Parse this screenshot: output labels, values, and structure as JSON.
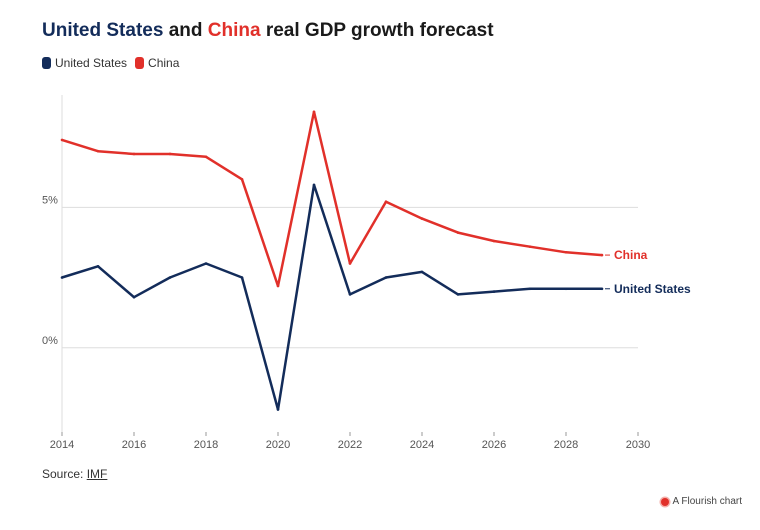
{
  "title": {
    "part1": "United States",
    "part2": " and ",
    "part3": "China",
    "part4": " real GDP growth forecast"
  },
  "colors": {
    "us": "#132c5a",
    "china": "#e1302a",
    "grid": "#dddddd",
    "axis": "#555555"
  },
  "source": {
    "label": "Source: ",
    "link": "IMF"
  },
  "flourish": {
    "label": "A Flourish chart"
  },
  "chart_data": {
    "type": "line",
    "title": "United States and China real GDP growth forecast",
    "xlabel": "",
    "ylabel": "",
    "xlim": [
      2014,
      2030
    ],
    "ylim": [
      -3,
      9
    ],
    "x_ticks": [
      "2014",
      "2016",
      "2018",
      "2020",
      "2022",
      "2024",
      "2026",
      "2028",
      "2030"
    ],
    "y_ticks": [
      {
        "value": 0,
        "label": "0%"
      },
      {
        "value": 5,
        "label": "5%"
      }
    ],
    "legend": "top-left",
    "grid": true,
    "x": [
      2014,
      2015,
      2016,
      2017,
      2018,
      2019,
      2020,
      2021,
      2022,
      2023,
      2024,
      2025,
      2026,
      2027,
      2028,
      2029
    ],
    "series": [
      {
        "name": "United States",
        "color": "#132c5a",
        "values": [
          2.5,
          2.9,
          1.8,
          2.5,
          3.0,
          2.5,
          -2.2,
          5.8,
          1.9,
          2.5,
          2.7,
          1.9,
          2.0,
          2.1,
          2.1,
          2.1
        ]
      },
      {
        "name": "China",
        "color": "#e1302a",
        "values": [
          7.4,
          7.0,
          6.9,
          6.9,
          6.8,
          6.0,
          2.2,
          8.4,
          3.0,
          5.2,
          4.6,
          4.1,
          3.8,
          3.6,
          3.4,
          3.3
        ]
      }
    ]
  }
}
